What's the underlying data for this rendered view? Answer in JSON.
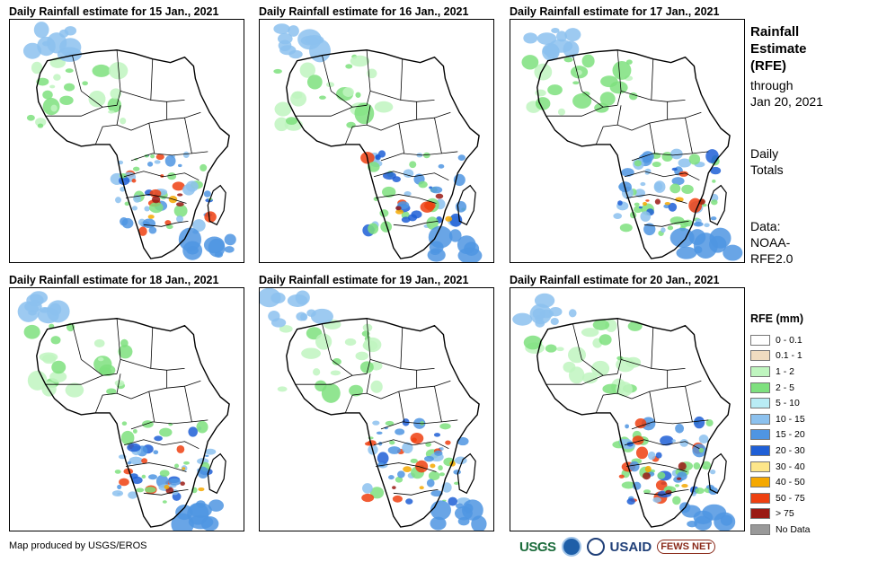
{
  "panels": [
    {
      "title": "Daily Rainfall estimate for 15 Jan., 2021",
      "intensity": 0.85
    },
    {
      "title": "Daily Rainfall estimate for 16 Jan., 2021",
      "intensity": 0.7
    },
    {
      "title": "Daily Rainfall estimate for 17 Jan., 2021",
      "intensity": 0.95
    },
    {
      "title": "Daily Rainfall estimate for 18 Jan., 2021",
      "intensity": 0.8
    },
    {
      "title": "Daily Rainfall estimate for 19 Jan., 2021",
      "intensity": 0.85
    },
    {
      "title": "Daily Rainfall estimate for 20 Jan., 2021",
      "intensity": 1.0
    }
  ],
  "side": {
    "title_line1": "Rainfall",
    "title_line2": "Estimate",
    "title_line3": "(RFE)",
    "through": "through",
    "date": "Jan 20, 2021",
    "totals_line1": "Daily",
    "totals_line2": "Totals",
    "data_line1": "Data:",
    "data_line2": "NOAA-",
    "data_line3": "RFE2.0"
  },
  "legend": {
    "title": "RFE (mm)",
    "items": [
      {
        "label": "0 - 0.1",
        "color": "#ffffff"
      },
      {
        "label": "0.1 - 1",
        "color": "#f0dcc0"
      },
      {
        "label": "1 - 2",
        "color": "#bff5bf"
      },
      {
        "label": "2 - 5",
        "color": "#7ee07e"
      },
      {
        "label": "5 - 10",
        "color": "#b9ecf5"
      },
      {
        "label": "10 - 15",
        "color": "#8cc1ee"
      },
      {
        "label": "15 - 20",
        "color": "#4f95e2"
      },
      {
        "label": "20 - 30",
        "color": "#1f5fd6"
      },
      {
        "label": "30 - 40",
        "color": "#fde68a"
      },
      {
        "label": "40 - 50",
        "color": "#f5a800"
      },
      {
        "label": "50 - 75",
        "color": "#ee4010"
      },
      {
        "label": "> 75",
        "color": "#9a1a14"
      },
      {
        "label": "No Data",
        "color": "#999999"
      }
    ]
  },
  "credit": "Map produced by USGS/EROS",
  "logos": {
    "usgs": "USGS",
    "usaid": "USAID",
    "fews": "FEWS NET"
  }
}
